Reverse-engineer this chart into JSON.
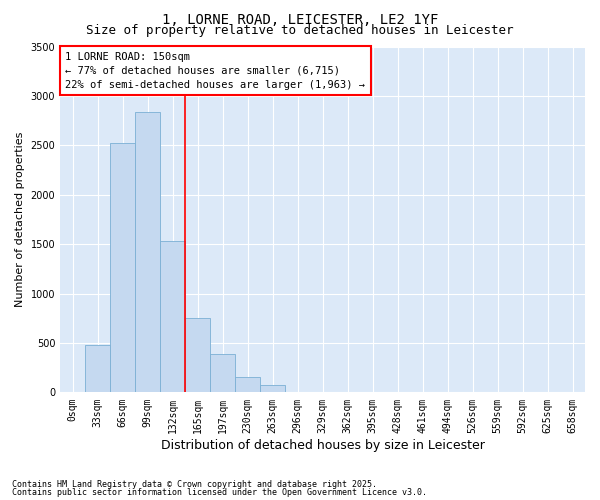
{
  "title_line1": "1, LORNE ROAD, LEICESTER, LE2 1YF",
  "title_line2": "Size of property relative to detached houses in Leicester",
  "xlabel": "Distribution of detached houses by size in Leicester",
  "ylabel": "Number of detached properties",
  "footnote1": "Contains HM Land Registry data © Crown copyright and database right 2025.",
  "footnote2": "Contains public sector information licensed under the Open Government Licence v3.0.",
  "annotation_line1": "1 LORNE ROAD: 150sqm",
  "annotation_line2": "← 77% of detached houses are smaller (6,715)",
  "annotation_line3": "22% of semi-detached houses are larger (1,963) →",
  "bar_labels": [
    "0sqm",
    "33sqm",
    "66sqm",
    "99sqm",
    "132sqm",
    "165sqm",
    "197sqm",
    "230sqm",
    "263sqm",
    "296sqm",
    "329sqm",
    "362sqm",
    "395sqm",
    "428sqm",
    "461sqm",
    "494sqm",
    "526sqm",
    "559sqm",
    "592sqm",
    "625sqm",
    "658sqm"
  ],
  "bar_values": [
    5,
    480,
    2520,
    2840,
    1530,
    750,
    390,
    155,
    80,
    0,
    0,
    0,
    0,
    0,
    0,
    0,
    0,
    0,
    0,
    0,
    0
  ],
  "bar_color": "#c5d9f0",
  "bar_edge_color": "#7bafd4",
  "red_line_x": 4.5,
  "ylim": [
    0,
    3500
  ],
  "yticks": [
    0,
    500,
    1000,
    1500,
    2000,
    2500,
    3000,
    3500
  ],
  "bg_color": "#dce9f8",
  "grid_color": "#ffffff",
  "title_fontsize": 10,
  "subtitle_fontsize": 9,
  "ylabel_fontsize": 8,
  "xlabel_fontsize": 9,
  "tick_fontsize": 7,
  "annotation_fontsize": 7.5,
  "footnote_fontsize": 6
}
